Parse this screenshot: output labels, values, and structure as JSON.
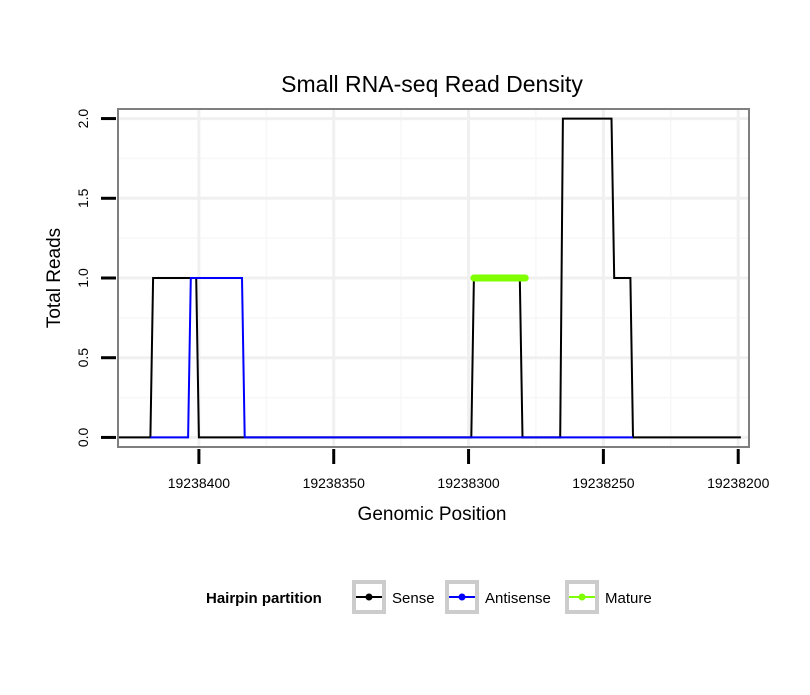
{
  "chart_data": {
    "type": "line",
    "title": "Small RNA-seq Read Density",
    "xlabel": "Genomic Position",
    "ylabel": "Total Reads",
    "xlim": [
      19238430,
      19238196
    ],
    "x_reversed": true,
    "ylim": [
      -0.06,
      2.06
    ],
    "x_ticks": [
      19238400,
      19238350,
      19238300,
      19238250,
      19238200
    ],
    "x_tick_labels": [
      "19238400",
      "19238350",
      "19238300",
      "19238250",
      "19238200"
    ],
    "y_ticks": [
      0,
      0.5,
      1,
      1.5,
      2
    ],
    "y_tick_labels": [
      "0.0",
      "0.5",
      "1.0",
      "1.5",
      "2.0"
    ],
    "grid": true,
    "legend_position": "bottom",
    "legend_title": "Hairpin partition",
    "series": [
      {
        "name": "Sense",
        "color": "#000000",
        "x": [
          19238430,
          19238418,
          19238417,
          19238401,
          19238400,
          19238299,
          19238298,
          19238281,
          19238280,
          19238266,
          19238265,
          19238247,
          19238246,
          19238240,
          19238239,
          19238199
        ],
        "y": [
          0,
          0,
          1,
          1,
          0,
          0,
          1,
          1,
          0,
          0,
          2,
          2,
          1,
          1,
          0,
          0
        ]
      },
      {
        "name": "Antisense",
        "color": "#0000ff",
        "x": [
          19238418,
          19238404,
          19238403,
          19238384,
          19238383,
          19238239
        ],
        "y": [
          0,
          0,
          1,
          1,
          0,
          0
        ]
      },
      {
        "name": "Mature",
        "color": "#7fff00",
        "x": [
          19238298,
          19238279
        ],
        "y": [
          1,
          1
        ]
      }
    ]
  }
}
